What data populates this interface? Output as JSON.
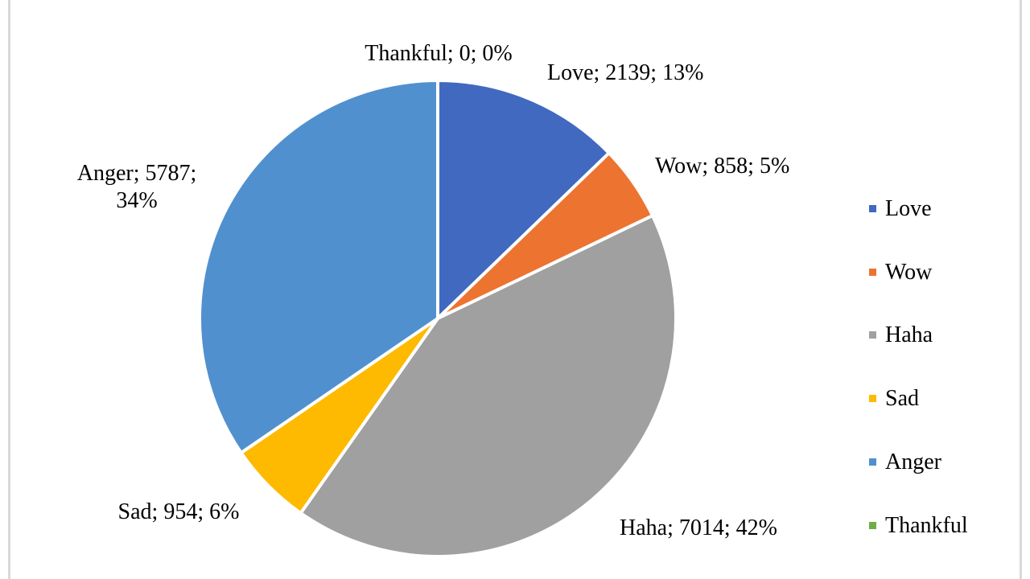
{
  "chart_data": {
    "type": "pie",
    "title": "",
    "slices": [
      {
        "name": "Love",
        "value": 2139,
        "percent": "13%",
        "label": "Love; 2139; 13%",
        "color": "#4169C0"
      },
      {
        "name": "Wow",
        "value": 858,
        "percent": "5%",
        "label": "Wow; 858; 5%",
        "color": "#ED7331"
      },
      {
        "name": "Haha",
        "value": 7014,
        "percent": "42%",
        "label": "Haha; 7014; 42%",
        "color": "#A0A0A0"
      },
      {
        "name": "Sad",
        "value": 954,
        "percent": "6%",
        "label": "Sad; 954; 6%",
        "color": "#FDBA00"
      },
      {
        "name": "Anger",
        "value": 5787,
        "percent": "34%",
        "label_lines": [
          "Anger; 5787;",
          "34%"
        ],
        "color": "#5190CF"
      },
      {
        "name": "Thankful",
        "value": 0,
        "percent": "0%",
        "label": "Thankful; 0; 0%",
        "color": "#70AD47"
      }
    ],
    "legend": {
      "position": "right",
      "entries": [
        "Love",
        "Wow",
        "Haha",
        "Sad",
        "Anger",
        "Thankful"
      ]
    }
  }
}
